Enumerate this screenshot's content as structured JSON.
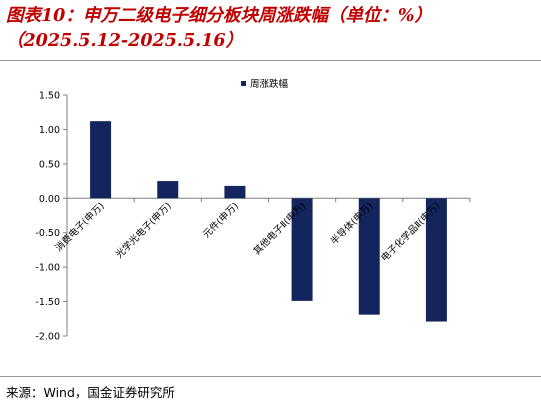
{
  "header": {
    "title_line1": "图表10：申万二级电子细分板块周涨跌幅（单位：%）",
    "title_line2": "（2025.5.12-2025.5.16）"
  },
  "footer": {
    "source": "来源：Wind，国金证券研究所"
  },
  "chart_data": {
    "type": "bar",
    "categories": [
      "消费电子(申万)",
      "光学光电子(申万)",
      "元件(申万)",
      "其他电子Ⅱ(申万)",
      "半导体(申万)",
      "电子化学品Ⅱ(申万)"
    ],
    "series": [
      {
        "name": "周涨跌幅",
        "values": [
          1.12,
          0.25,
          0.18,
          -1.49,
          -1.69,
          -1.79
        ],
        "color": "#14245c"
      }
    ],
    "ylim": [
      -2.0,
      1.5
    ],
    "yticks": [
      1.5,
      1.0,
      0.5,
      0.0,
      -0.5,
      -1.0,
      -1.5,
      -2.0
    ],
    "ytick_labels": [
      "1.50",
      "1.00",
      "0.50",
      "0.00",
      "-0.50",
      "-1.00",
      "-1.50",
      "-2.00"
    ],
    "legend_position": "top",
    "grid": false
  }
}
